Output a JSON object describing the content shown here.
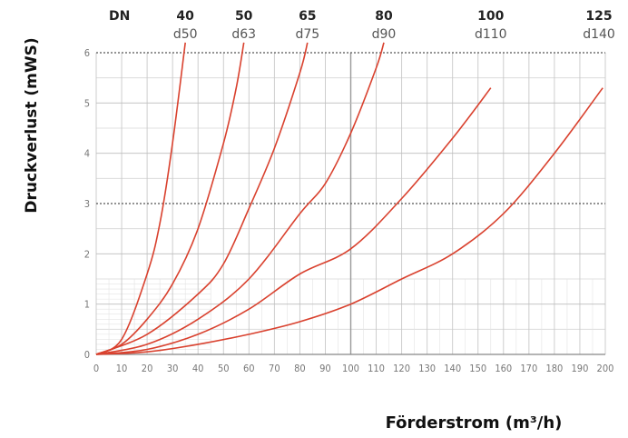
{
  "chart_data": {
    "type": "line",
    "title": "",
    "xlabel": "Förderstrom (m³/h)",
    "ylabel": "Druckverlust (mWS)",
    "xlim": [
      0,
      200
    ],
    "ylim": [
      0,
      6
    ],
    "x_ticks": [
      "0",
      "10",
      "20",
      "30",
      "40",
      "50",
      "60",
      "70",
      "80",
      "90",
      "100",
      "110",
      "120",
      "130",
      "140",
      "150",
      "160",
      "170",
      "180",
      "190",
      "200"
    ],
    "y_ticks": [
      "0",
      "1",
      "2",
      "3",
      "4",
      "5",
      "6"
    ],
    "grid": true,
    "legend_header": "DN",
    "line_color": "#d9412e",
    "series": [
      {
        "name": "40",
        "sub": "d50",
        "points": [
          [
            0,
            0
          ],
          [
            10,
            0.3
          ],
          [
            20,
            1.6
          ],
          [
            25,
            2.6
          ],
          [
            30,
            4.2
          ],
          [
            35,
            6.2
          ]
        ]
      },
      {
        "name": "50",
        "sub": "d63",
        "points": [
          [
            0,
            0
          ],
          [
            10,
            0.2
          ],
          [
            20,
            0.7
          ],
          [
            30,
            1.4
          ],
          [
            40,
            2.5
          ],
          [
            50,
            4.2
          ],
          [
            55,
            5.3
          ],
          [
            58,
            6.2
          ]
        ]
      },
      {
        "name": "65",
        "sub": "d75",
        "points": [
          [
            0,
            0
          ],
          [
            20,
            0.4
          ],
          [
            40,
            1.2
          ],
          [
            50,
            1.8
          ],
          [
            60,
            2.9
          ],
          [
            70,
            4.1
          ],
          [
            80,
            5.6
          ],
          [
            83,
            6.2
          ]
        ]
      },
      {
        "name": "80",
        "sub": "d90",
        "points": [
          [
            0,
            0
          ],
          [
            20,
            0.2
          ],
          [
            40,
            0.7
          ],
          [
            60,
            1.5
          ],
          [
            80,
            2.8
          ],
          [
            90,
            3.4
          ],
          [
            100,
            4.4
          ],
          [
            110,
            5.7
          ],
          [
            113,
            6.2
          ]
        ]
      },
      {
        "name": "100",
        "sub": "d110",
        "points": [
          [
            0,
            0
          ],
          [
            20,
            0.1
          ],
          [
            40,
            0.4
          ],
          [
            60,
            0.9
          ],
          [
            80,
            1.6
          ],
          [
            100,
            2.1
          ],
          [
            120,
            3.1
          ],
          [
            140,
            4.3
          ],
          [
            155,
            5.3
          ]
        ]
      },
      {
        "name": "125",
        "sub": "d140",
        "points": [
          [
            0,
            0
          ],
          [
            20,
            0.05
          ],
          [
            40,
            0.2
          ],
          [
            60,
            0.4
          ],
          [
            80,
            0.65
          ],
          [
            100,
            1.0
          ],
          [
            120,
            1.5
          ],
          [
            140,
            2.0
          ],
          [
            160,
            2.8
          ],
          [
            180,
            4.0
          ],
          [
            199,
            5.3
          ]
        ]
      }
    ]
  }
}
